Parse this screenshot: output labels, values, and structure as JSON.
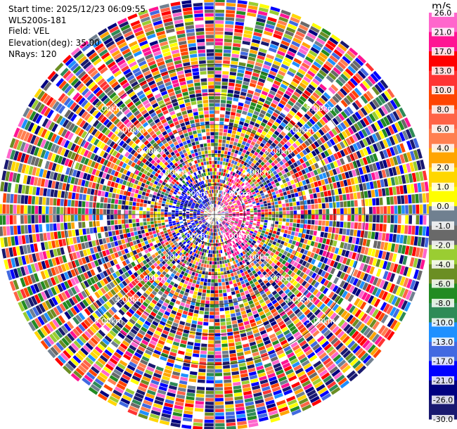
{
  "header": {
    "start_time": "Start time: 2025/12/23 06:09:55",
    "site": "WLS200s-181",
    "field": "Field: VEL",
    "elevation": "Elevation(deg): 35.00",
    "nrays": "NRays: 120"
  },
  "chart_data": {
    "type": "heatmap",
    "subtype": "polar-ppi",
    "field": "VEL",
    "units": "m/s",
    "elevation_deg": 35.0,
    "n_rays": 120,
    "max_range_km": 7.1,
    "range_rings_km": [
      1.0,
      2.0,
      3.0,
      4.0,
      5.0
    ],
    "ring_labels": [
      "1.00km",
      "2.00km",
      "3.00km",
      "4.00km",
      "5.00km"
    ],
    "colorbar": {
      "ticks": [
        "26.0",
        "21.0",
        "17.0",
        "13.0",
        "10.0",
        "8.0",
        "6.0",
        "4.0",
        "2.0",
        "1.0",
        "0.0",
        "-1.0",
        "-2.0",
        "-4.0",
        "-6.0",
        "-8.0",
        "-10.0",
        "-13.0",
        "-17.0",
        "-21.0",
        "-26.0",
        "-30.0"
      ],
      "colors": [
        "#ff66cc",
        "#ff1493",
        "#ff0000",
        "#ff3333",
        "#ff4500",
        "#ff6347",
        "#ff7f50",
        "#ffa500",
        "#ffd700",
        "#ffff00",
        "#708090",
        "#696969",
        "#9acd32",
        "#6b8e23",
        "#228b22",
        "#2e8b57",
        "#1e90ff",
        "#4169e1",
        "#0000ff",
        "#000080",
        "#191970",
        "#191970"
      ]
    },
    "near_field_pattern": "positive velocities (pink/red) east of radar, negative (blue) west; outer gates noisy"
  }
}
